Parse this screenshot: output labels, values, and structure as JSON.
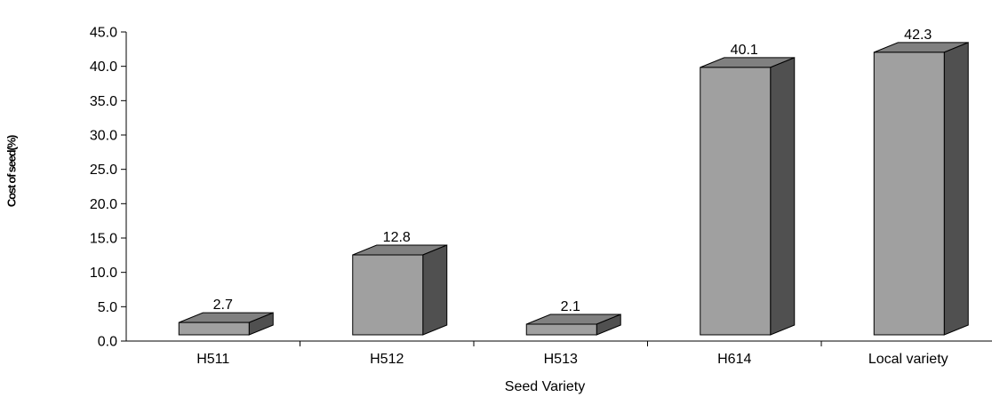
{
  "chart_data": {
    "type": "bar",
    "categories": [
      "H511",
      "H512",
      "H513",
      "H614",
      "Local variety"
    ],
    "values": [
      2.7,
      12.8,
      2.1,
      40.1,
      42.3
    ],
    "data_labels": [
      "2.7",
      "12.8",
      "2.1",
      "40.1",
      "42.3"
    ],
    "xlabel": "Seed Variety",
    "ylabel": "Cost of seed(%)",
    "ylim": [
      0,
      45
    ],
    "ytick_step": 5,
    "yticks": [
      "0.0",
      "5.0",
      "10.0",
      "15.0",
      "20.0",
      "25.0",
      "30.0",
      "35.0",
      "40.0",
      "45.0"
    ],
    "grid": false,
    "style": "3d",
    "colors": {
      "front": "#a0a0a0",
      "top": "#808080",
      "side": "#505050"
    }
  }
}
